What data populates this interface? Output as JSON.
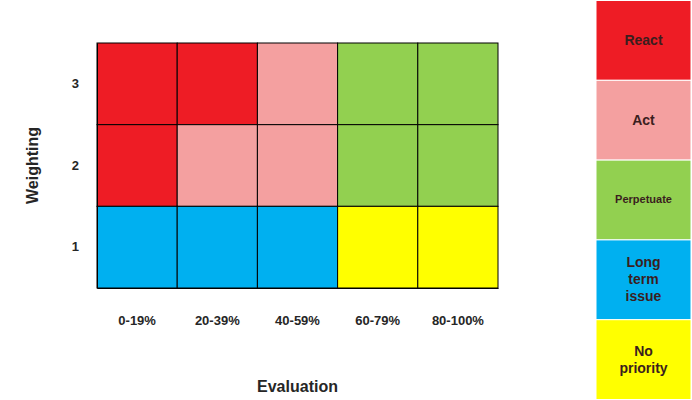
{
  "chart_data": {
    "type": "heatmap",
    "x_label": "Evaluation",
    "y_label": "Weighting",
    "categories": [
      "0-19%",
      "20-39%",
      "40-59%",
      "60-79%",
      "80-100%"
    ],
    "y_categories": [
      1,
      2,
      3
    ],
    "legend": "right",
    "series": [
      {
        "name": "React",
        "color": "#ee1c25",
        "x": [
          "0-19%",
          "20-39%",
          "0-19%"
        ],
        "y": [
          3,
          3,
          2
        ]
      },
      {
        "name": "Act",
        "color": "#f4a0a0",
        "x": [
          "40-59%",
          "20-39%",
          "40-59%"
        ],
        "y": [
          3,
          2,
          2
        ]
      },
      {
        "name": "Perpetuate",
        "color": "#92d050",
        "x": [
          "60-79%",
          "80-100%",
          "60-79%",
          "80-100%"
        ],
        "y": [
          3,
          3,
          2,
          2
        ]
      },
      {
        "name": "Long term issue",
        "color": "#00b0f0",
        "x": [
          "0-19%",
          "20-39%",
          "40-59%"
        ],
        "y": [
          1,
          1,
          1
        ]
      },
      {
        "name": "No priority",
        "color": "#ffff00",
        "x": [
          "60-79%",
          "80-100%"
        ],
        "y": [
          1,
          1
        ]
      }
    ]
  }
}
